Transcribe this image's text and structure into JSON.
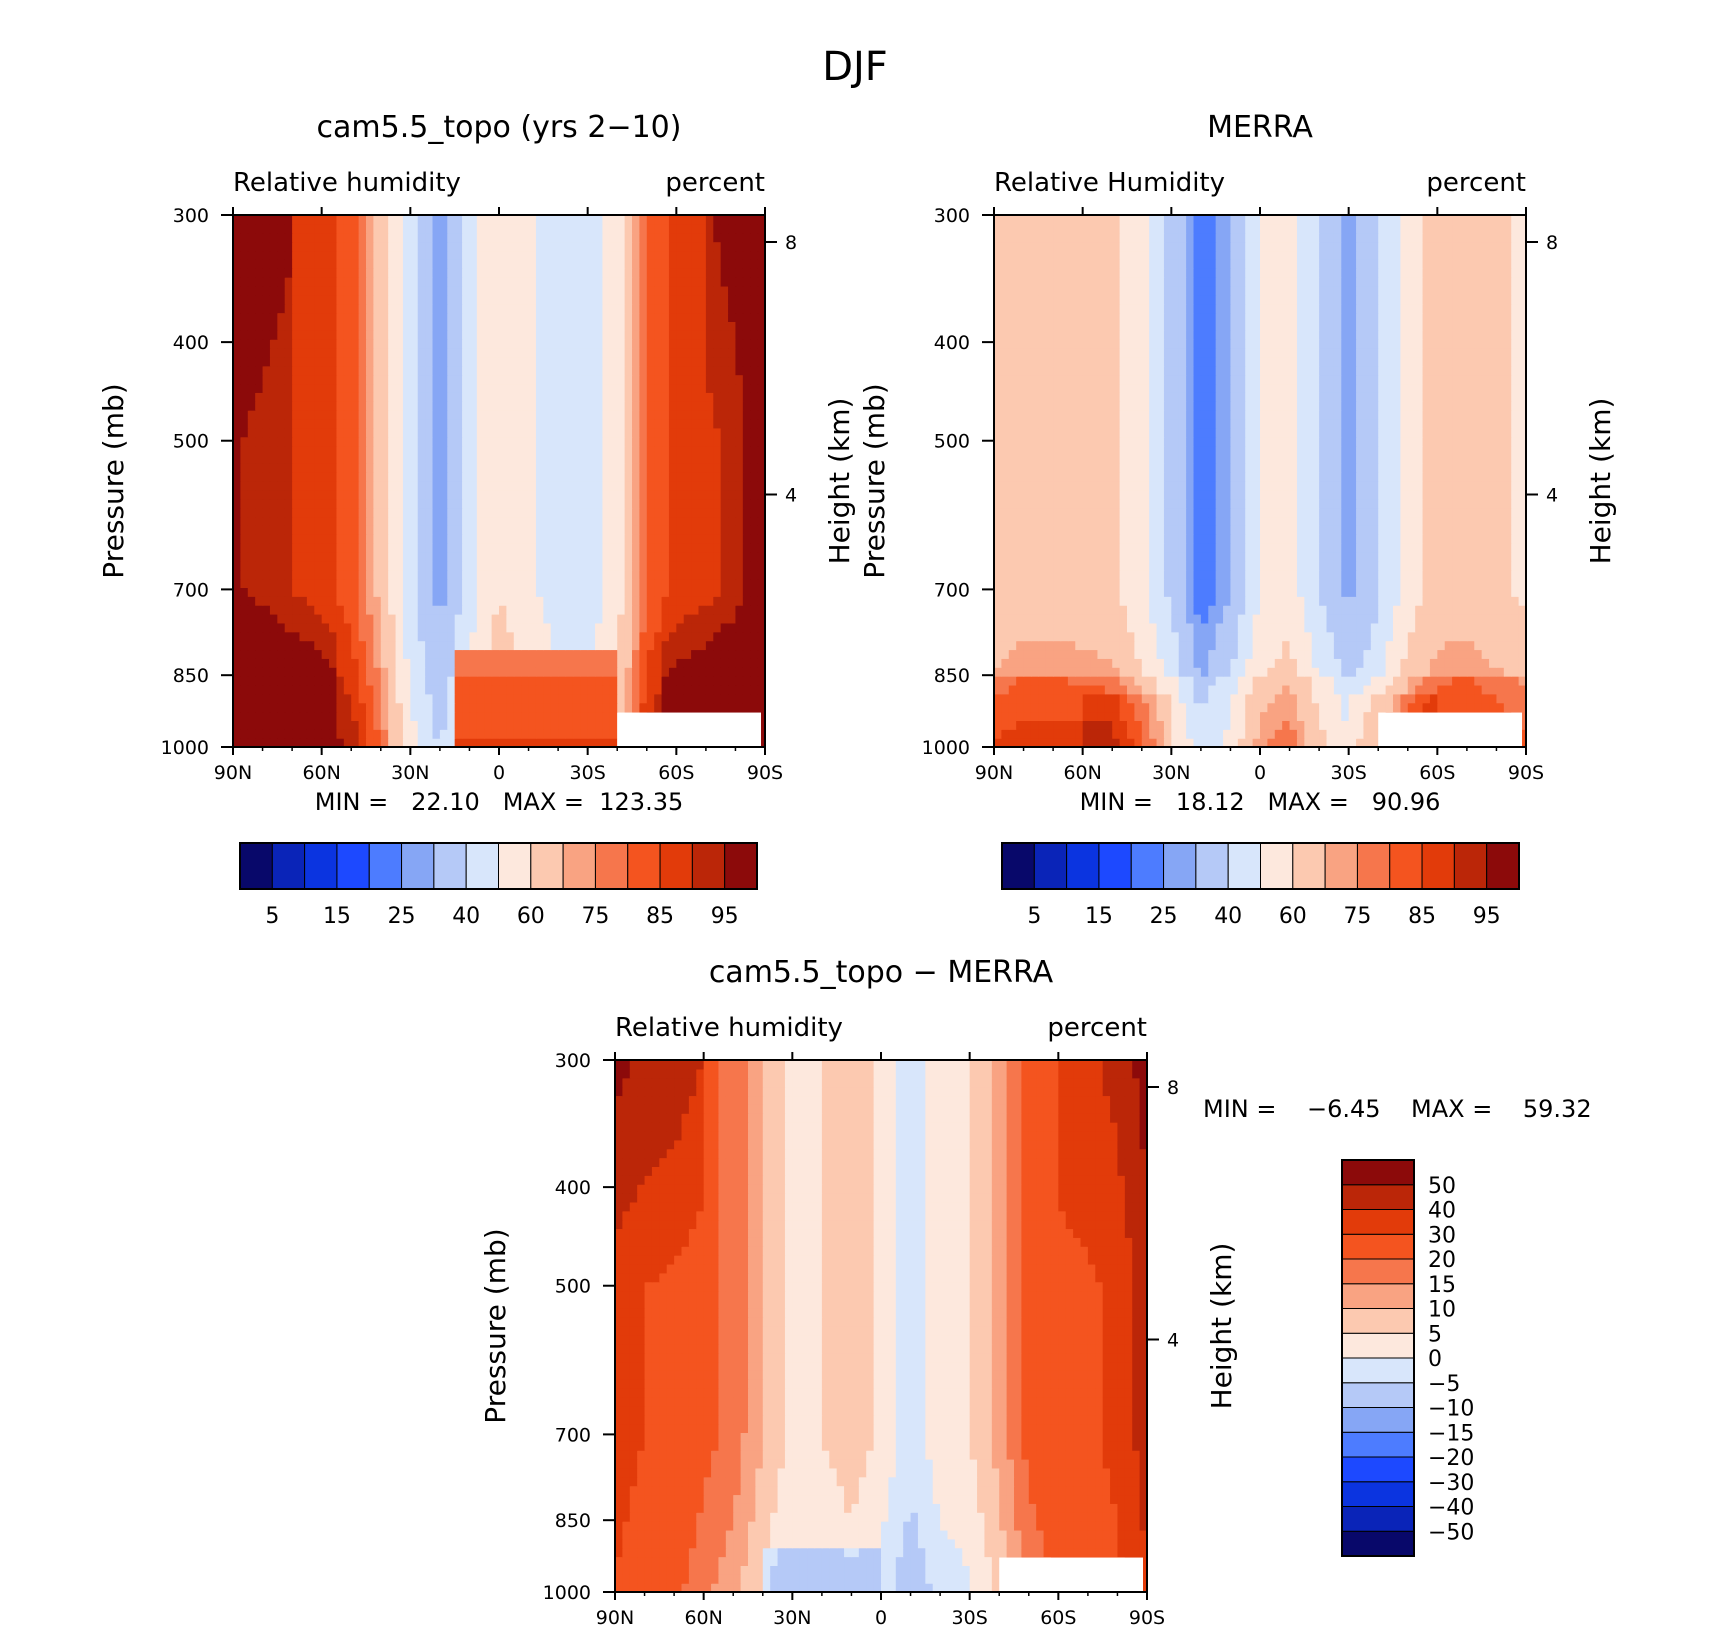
{
  "figure": {
    "title": "DJF"
  },
  "colors": {
    "rh": [
      "#08086a",
      "#0a24b8",
      "#0b34e0",
      "#1d49ff",
      "#4d7cff",
      "#86a6f5",
      "#b5c9f7",
      "#d8e6fb",
      "#fde8dd",
      "#fcc9b0",
      "#f9a382",
      "#f6764c",
      "#f4541f",
      "#e23b0a",
      "#bb2608",
      "#8c0a0a"
    ],
    "diff": [
      "#08086a",
      "#0a24b8",
      "#0b34e0",
      "#1d49ff",
      "#4d7cff",
      "#86a6f5",
      "#b5c9f7",
      "#d8e6fb",
      "#fde8dd",
      "#fcc9b0",
      "#f9a382",
      "#f6764c",
      "#f4541f",
      "#e23b0a",
      "#bb2608",
      "#8c0a0a"
    ]
  },
  "chart_data": [
    {
      "type": "heatmap",
      "id": "cam",
      "title": "cam5.5_topo (yrs 2−10)",
      "left_label": "Relative humidity",
      "right_label": "percent",
      "ylabel": "Pressure (mb)",
      "y2label": "Height (km)",
      "x_ticks": [
        "90N",
        "60N",
        "30N",
        "0",
        "30S",
        "60S",
        "90S"
      ],
      "y_ticks": [
        "300",
        "400",
        "500",
        "700",
        "850",
        "1000"
      ],
      "y2_ticks": [
        "8",
        "4"
      ],
      "ylim": [
        1000,
        300
      ],
      "min_text": "MIN =   22.10   MAX =  123.35",
      "min": 22.1,
      "max": 123.35,
      "colorbar_labels": [
        "5",
        "15",
        "25",
        "40",
        "60",
        "75",
        "85",
        "95"
      ],
      "levels": [
        5,
        10,
        15,
        20,
        25,
        30,
        40,
        50,
        60,
        70,
        75,
        80,
        85,
        90,
        95
      ],
      "lat_profile": [
        [
          -90,
          96
        ],
        [
          -80,
          93
        ],
        [
          -70,
          90
        ],
        [
          -60,
          87
        ],
        [
          -50,
          82
        ],
        [
          -40,
          68
        ],
        [
          -30,
          42
        ],
        [
          -20,
          27
        ],
        [
          -10,
          45
        ],
        [
          0,
          60
        ],
        [
          10,
          52
        ],
        [
          20,
          45
        ],
        [
          30,
          43
        ],
        [
          40,
          55
        ],
        [
          50,
          80
        ],
        [
          60,
          86
        ],
        [
          70,
          88
        ],
        [
          80,
          92
        ],
        [
          90,
          100
        ]
      ]
    },
    {
      "type": "heatmap",
      "id": "merra",
      "title": "MERRA",
      "left_label": "Relative Humidity",
      "right_label": "percent",
      "ylabel": "Pressure (mb)",
      "y2label": "Height (km)",
      "x_ticks": [
        "90N",
        "60N",
        "30N",
        "0",
        "30S",
        "60S",
        "90S"
      ],
      "y_ticks": [
        "300",
        "400",
        "500",
        "700",
        "850",
        "1000"
      ],
      "y2_ticks": [
        "8",
        "4"
      ],
      "ylim": [
        1000,
        300
      ],
      "min_text": "MIN =   18.12   MAX =   90.96",
      "min": 18.12,
      "max": 90.96,
      "colorbar_labels": [
        "5",
        "15",
        "25",
        "40",
        "60",
        "75",
        "85",
        "95"
      ],
      "levels": [
        5,
        10,
        15,
        20,
        25,
        30,
        40,
        50,
        60,
        70,
        75,
        80,
        85,
        90,
        95
      ],
      "lat_profile": [
        [
          -90,
          62
        ],
        [
          -80,
          65
        ],
        [
          -70,
          65
        ],
        [
          -60,
          64
        ],
        [
          -50,
          63
        ],
        [
          -40,
          52
        ],
        [
          -30,
          38
        ],
        [
          -20,
          20
        ],
        [
          -10,
          30
        ],
        [
          0,
          50
        ],
        [
          10,
          55
        ],
        [
          20,
          40
        ],
        [
          30,
          28
        ],
        [
          40,
          38
        ],
        [
          50,
          55
        ],
        [
          60,
          64
        ],
        [
          70,
          65
        ],
        [
          80,
          62
        ],
        [
          90,
          58
        ]
      ]
    },
    {
      "type": "heatmap",
      "id": "diff",
      "title": "cam5.5_topo − MERRA",
      "left_label": "Relative humidity",
      "right_label": "percent",
      "ylabel": "Pressure (mb)",
      "y2label": "Height (km)",
      "x_ticks": [
        "90N",
        "60N",
        "30N",
        "0",
        "30S",
        "60S",
        "90S"
      ],
      "y_ticks": [
        "300",
        "400",
        "500",
        "700",
        "850",
        "1000"
      ],
      "y2_ticks": [
        "8",
        "4"
      ],
      "ylim": [
        1000,
        300
      ],
      "min_text": "MIN =    −6.45    MAX =    59.32",
      "min": -6.45,
      "max": 59.32,
      "colorbar_labels": [
        "50",
        "40",
        "30",
        "20",
        "15",
        "10",
        "5",
        "0",
        "−5",
        "−10",
        "−15",
        "−20",
        "−30",
        "−40",
        "−50"
      ],
      "levels": [
        -50,
        -40,
        -30,
        -20,
        -15,
        -10,
        -5,
        0,
        5,
        10,
        15,
        20,
        30,
        40,
        50
      ],
      "lat_profile": [
        [
          -90,
          35
        ],
        [
          -80,
          30
        ],
        [
          -70,
          28
        ],
        [
          -60,
          22
        ],
        [
          -50,
          18
        ],
        [
          -40,
          10
        ],
        [
          -30,
          4
        ],
        [
          -20,
          5
        ],
        [
          -10,
          8
        ],
        [
          0,
          4
        ],
        [
          10,
          -3
        ],
        [
          20,
          3
        ],
        [
          30,
          5
        ],
        [
          40,
          12
        ],
        [
          50,
          22
        ],
        [
          60,
          26
        ],
        [
          70,
          28
        ],
        [
          80,
          33
        ],
        [
          90,
          45
        ]
      ]
    }
  ]
}
